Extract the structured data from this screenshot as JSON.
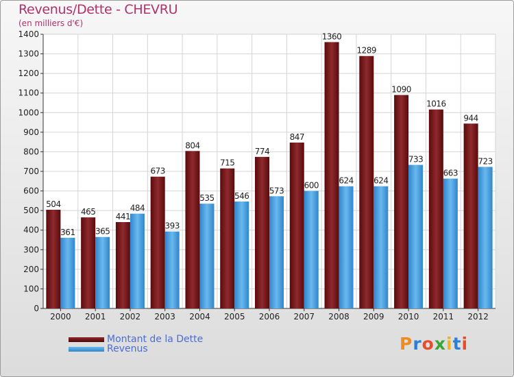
{
  "chart_data": {
    "type": "bar",
    "title": "Revenus/Dette - CHEVRU",
    "subtitle": "(en milliers d'€)",
    "categories": [
      "2000",
      "2001",
      "2002",
      "2003",
      "2004",
      "2005",
      "2006",
      "2007",
      "2008",
      "2009",
      "2010",
      "2011",
      "2012"
    ],
    "series": [
      {
        "name": "Montant de la Dette",
        "color": "#7a1416",
        "values": [
          504,
          465,
          441,
          673,
          804,
          715,
          774,
          847,
          1360,
          1289,
          1090,
          1016,
          944
        ]
      },
      {
        "name": "Revenus",
        "color": "#3f9fe0",
        "values": [
          361,
          365,
          484,
          393,
          535,
          546,
          573,
          600,
          624,
          624,
          733,
          663,
          723
        ]
      }
    ],
    "ylim": [
      0,
      1400
    ],
    "yticks": [
      0,
      100,
      200,
      300,
      400,
      500,
      600,
      700,
      800,
      900,
      1000,
      1100,
      1200,
      1300,
      1400
    ],
    "grid": true,
    "legend_position": "bottom-left"
  },
  "logo": {
    "letters": [
      "P",
      "r",
      "o",
      "x",
      "i",
      "t",
      "i"
    ],
    "colors": [
      "#f08c1e",
      "#2b7fd4",
      "#e84c2a",
      "#3aa635",
      "#f0b41e",
      "#2b7fd4",
      "#e84c2a"
    ]
  }
}
